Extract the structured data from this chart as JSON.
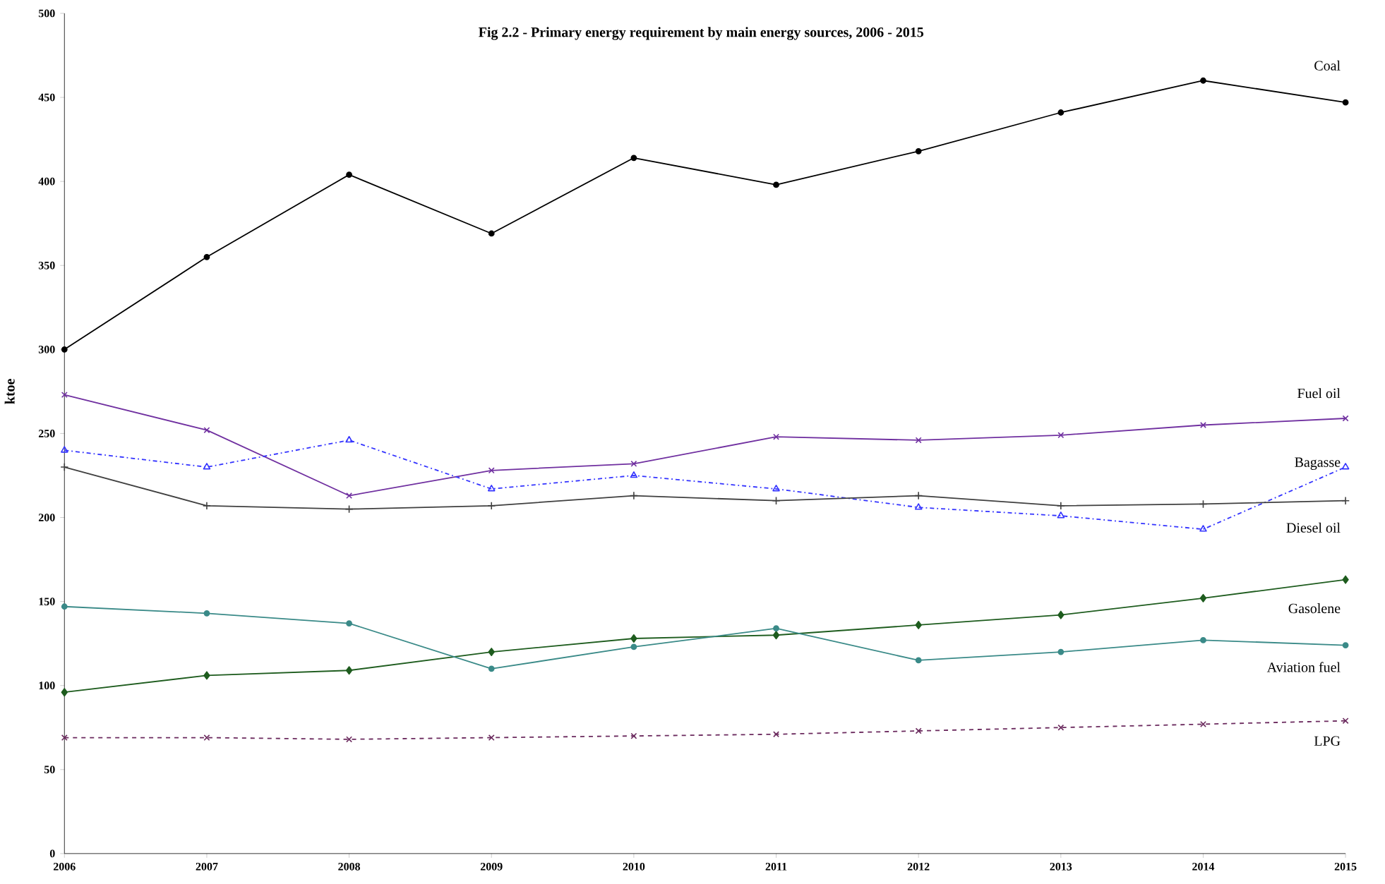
{
  "chart_data": {
    "type": "line",
    "title": "Fig 2.2 - Primary energy requirement by main energy sources,  2006 - 2015",
    "ylabel": "ktoe",
    "x": [
      2006,
      2007,
      2008,
      2009,
      2010,
      2011,
      2012,
      2013,
      2014,
      2015
    ],
    "xlim": [
      2006,
      2015
    ],
    "xticks": [
      2006,
      2007,
      2008,
      2009,
      2010,
      2011,
      2012,
      2013,
      2014,
      2015
    ],
    "ylim": [
      0,
      500
    ],
    "yticks": [
      0,
      50,
      100,
      150,
      200,
      250,
      300,
      350,
      400,
      450,
      500
    ],
    "grid": false,
    "legend": false,
    "series": [
      {
        "name": "Coal",
        "color": "#000000",
        "marker": "circle",
        "line_style": "solid",
        "values": [
          300,
          355,
          404,
          369,
          414,
          398,
          418,
          441,
          460,
          447
        ]
      },
      {
        "name": "Fuel oil",
        "color": "#7030a0",
        "marker": "cross",
        "line_style": "solid",
        "values": [
          273,
          252,
          213,
          228,
          232,
          248,
          246,
          249,
          255,
          259
        ]
      },
      {
        "name": "Bagasse",
        "color": "#3333ff",
        "marker": "triangle",
        "line_style": "dashdot",
        "values": [
          240,
          230,
          246,
          217,
          225,
          217,
          206,
          201,
          193,
          230
        ]
      },
      {
        "name": "Diesel oil",
        "color": "#404040",
        "marker": "plus",
        "line_style": "solid",
        "values": [
          230,
          207,
          205,
          207,
          213,
          210,
          213,
          207,
          208,
          210
        ]
      },
      {
        "name": "Gasolene",
        "color": "#1e5c1e",
        "marker": "diamond",
        "line_style": "solid",
        "values": [
          96,
          106,
          109,
          120,
          128,
          130,
          136,
          142,
          152,
          163
        ]
      },
      {
        "name": "Aviation fuel",
        "color": "#3a8a88",
        "marker": "circle",
        "line_style": "solid",
        "values": [
          147,
          143,
          137,
          110,
          123,
          134,
          115,
          120,
          127,
          124
        ]
      },
      {
        "name": "LPG",
        "color": "#6b2a5e",
        "marker": "cross",
        "line_style": "dashed",
        "values": [
          69,
          69,
          68,
          69,
          70,
          71,
          73,
          75,
          77,
          79
        ]
      }
    ]
  }
}
